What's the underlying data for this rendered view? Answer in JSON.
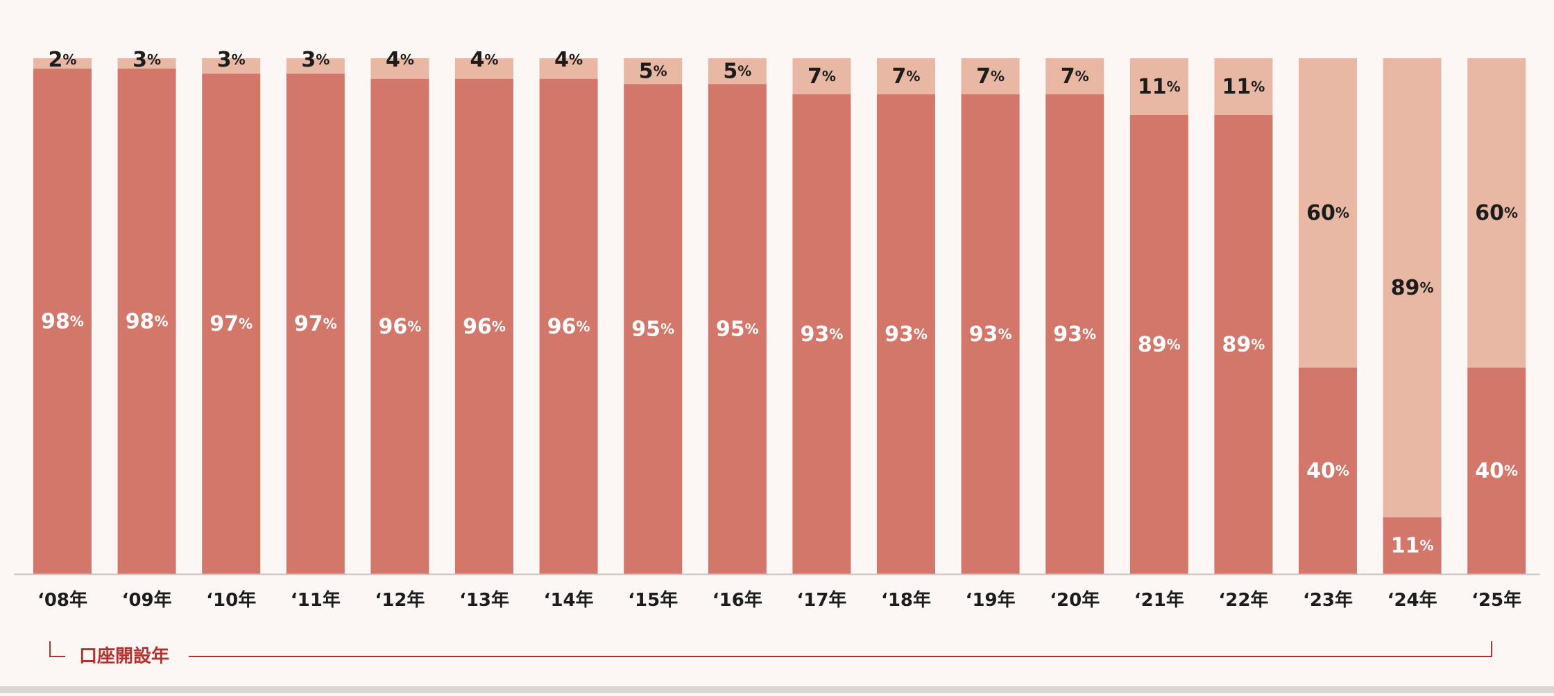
{
  "chart_data": {
    "type": "bar",
    "stacked": true,
    "normalized": true,
    "categories": [
      "‘08年",
      "‘09年",
      "‘10年",
      "‘11年",
      "‘12年",
      "‘13年",
      "‘14年",
      "‘15年",
      "‘16年",
      "‘17年",
      "‘18年",
      "‘19年",
      "‘20年",
      "‘21年",
      "‘22年",
      "‘23年",
      "‘24年",
      "‘25年"
    ],
    "series": [
      {
        "values": [
          98,
          98,
          97,
          97,
          96,
          96,
          96,
          95,
          95,
          93,
          93,
          93,
          93,
          89,
          89,
          40,
          11,
          40
        ],
        "color": "#d4776b",
        "label_color": "#ffffff"
      },
      {
        "values": [
          2,
          3,
          3,
          3,
          4,
          4,
          4,
          5,
          5,
          7,
          7,
          7,
          7,
          11,
          11,
          60,
          89,
          60
        ],
        "color": "#e8b8a4",
        "label_color": "#1c1c1c"
      }
    ],
    "value_suffix": "%",
    "ylim": [
      0,
      100
    ],
    "grid": false,
    "legend": "none",
    "xaxis_bracket_label": "口座開設年",
    "bracket_color": "#b5302c"
  }
}
